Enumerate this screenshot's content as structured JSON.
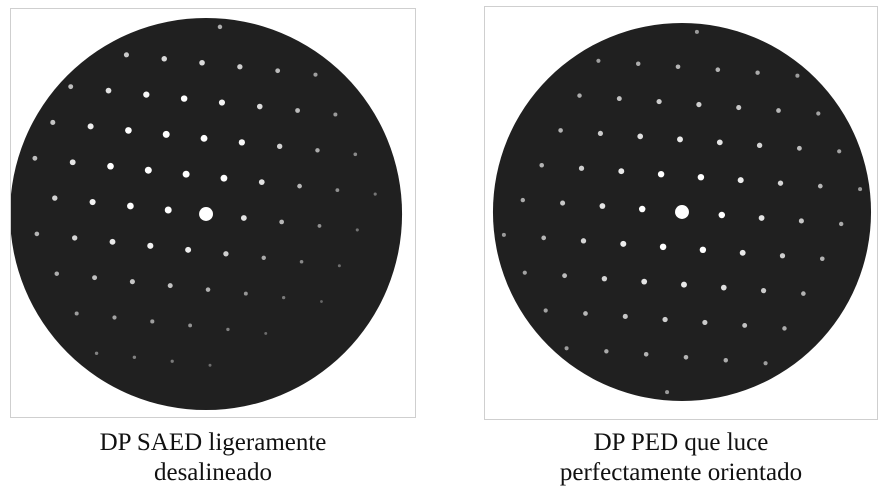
{
  "panels": [
    {
      "caption_line1": "DP SAED ligeramente",
      "caption_line2": "desalineado"
    },
    {
      "caption_line1": "DP PED que luce",
      "caption_line2": "perfectamente orientado"
    }
  ],
  "colors": {
    "disc": "#202020",
    "spot": "#ffffff",
    "caption": "#111111"
  }
}
